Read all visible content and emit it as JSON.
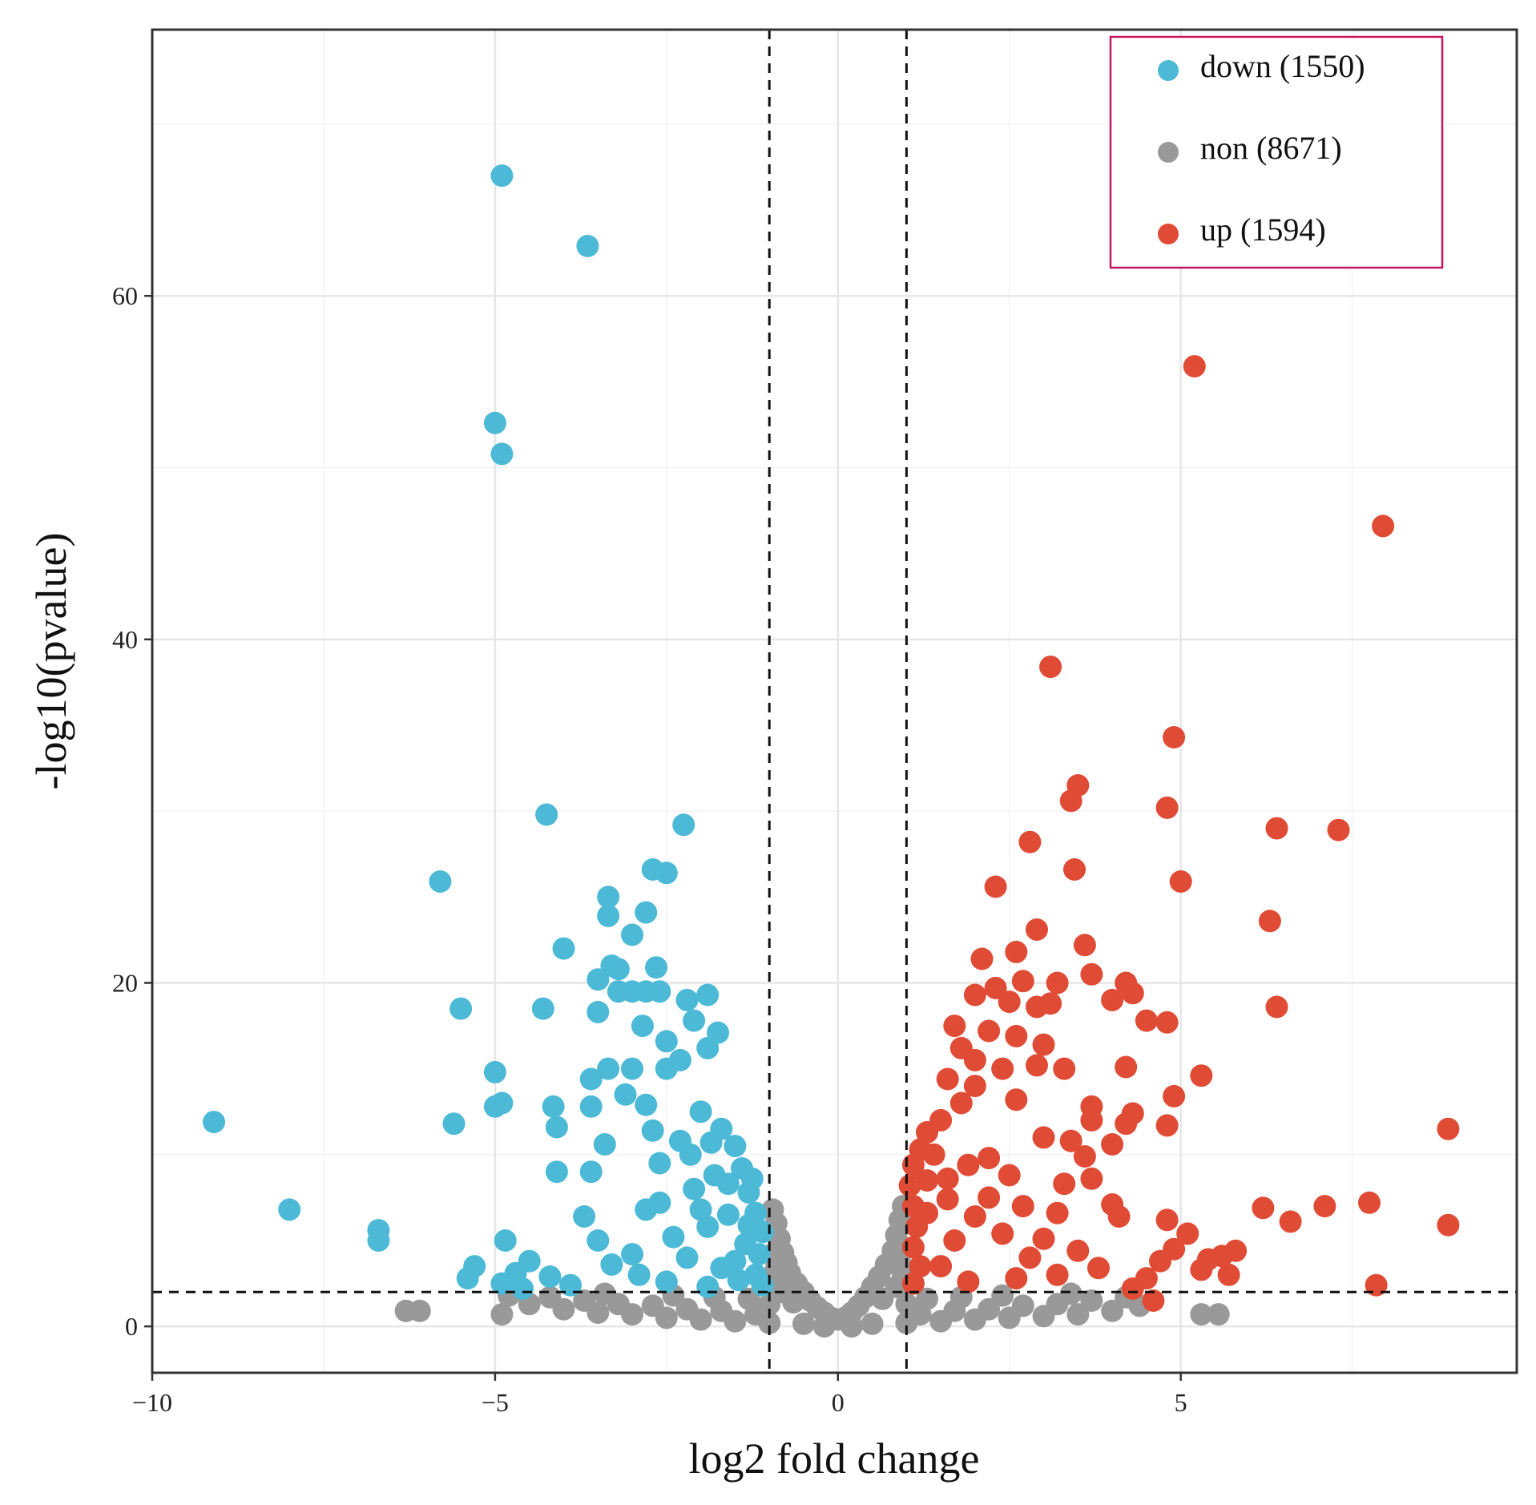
{
  "chart_data": {
    "type": "scatter",
    "title": "",
    "xlabel": "log2 fold change",
    "ylabel": "-log10(pvalue)",
    "xlim": [
      -10,
      9.9
    ],
    "ylim": [
      -2.7,
      75.5
    ],
    "x_ticks": [
      -10,
      -5,
      0,
      5
    ],
    "x_tick_labels": [
      "−10",
      "−5",
      "0",
      "5"
    ],
    "y_ticks": [
      0,
      20,
      40,
      60
    ],
    "y_tick_labels": [
      "0",
      "20",
      "40",
      "60"
    ],
    "grid": true,
    "threshold_lines": {
      "x": [
        -1,
        1
      ],
      "y": [
        2
      ]
    },
    "legend_position": "top-right",
    "colors": {
      "down": "#4cb9d6",
      "non": "#999999",
      "up": "#e04b35",
      "legend_border": "#c2185b"
    },
    "series": [
      {
        "key": "down",
        "name": "down (1550)",
        "color": "#4cb9d6",
        "points": [
          [
            -4.9,
            67.0
          ],
          [
            -3.65,
            62.9
          ],
          [
            -5.0,
            52.6
          ],
          [
            -4.9,
            50.8
          ],
          [
            -9.1,
            11.9
          ],
          [
            -8.0,
            6.8
          ],
          [
            -6.7,
            5.6
          ],
          [
            -6.7,
            5.0
          ],
          [
            -5.8,
            25.9
          ],
          [
            -5.5,
            18.5
          ],
          [
            -5.6,
            11.8
          ],
          [
            -5.0,
            14.8
          ],
          [
            -5.0,
            12.8
          ],
          [
            -4.9,
            13.0
          ],
          [
            -4.85,
            5.0
          ],
          [
            -5.3,
            3.5
          ],
          [
            -5.4,
            2.8
          ],
          [
            -4.25,
            29.8
          ],
          [
            -4.3,
            18.5
          ],
          [
            -4.15,
            12.8
          ],
          [
            -4.1,
            11.6
          ],
          [
            -4.0,
            22.0
          ],
          [
            -4.1,
            9.0
          ],
          [
            -3.35,
            25.0
          ],
          [
            -3.35,
            23.9
          ],
          [
            -3.0,
            22.8
          ],
          [
            -3.3,
            21.0
          ],
          [
            -3.2,
            20.8
          ],
          [
            -3.5,
            20.2
          ],
          [
            -3.2,
            19.5
          ],
          [
            -3.0,
            19.5
          ],
          [
            -3.5,
            18.3
          ],
          [
            -2.7,
            26.6
          ],
          [
            -2.5,
            26.4
          ],
          [
            -2.8,
            24.1
          ],
          [
            -2.65,
            20.9
          ],
          [
            -2.8,
            19.5
          ],
          [
            -2.6,
            19.5
          ],
          [
            -2.85,
            17.5
          ],
          [
            -2.5,
            16.6
          ],
          [
            -2.25,
            29.2
          ],
          [
            -2.2,
            19.0
          ],
          [
            -1.9,
            19.3
          ],
          [
            -2.1,
            17.8
          ],
          [
            -1.75,
            17.1
          ],
          [
            -1.9,
            16.2
          ],
          [
            -2.3,
            15.5
          ],
          [
            -2.5,
            15.0
          ],
          [
            -3.35,
            15.0
          ],
          [
            -3.0,
            15.0
          ],
          [
            -3.6,
            14.4
          ],
          [
            -3.1,
            13.5
          ],
          [
            -3.6,
            12.8
          ],
          [
            -2.8,
            12.9
          ],
          [
            -3.4,
            10.6
          ],
          [
            -3.6,
            9.0
          ],
          [
            -3.7,
            6.4
          ],
          [
            -3.5,
            5.0
          ],
          [
            -4.5,
            3.8
          ],
          [
            -4.7,
            3.1
          ],
          [
            -4.9,
            2.5
          ],
          [
            -4.2,
            2.9
          ],
          [
            -4.6,
            2.2
          ],
          [
            -3.3,
            3.6
          ],
          [
            -3.0,
            4.2
          ],
          [
            -2.8,
            6.8
          ],
          [
            -2.6,
            9.5
          ],
          [
            -2.3,
            10.8
          ],
          [
            -2.0,
            12.5
          ],
          [
            -1.7,
            11.5
          ],
          [
            -1.5,
            10.5
          ],
          [
            -1.4,
            9.2
          ],
          [
            -1.3,
            7.8
          ],
          [
            -1.2,
            6.6
          ],
          [
            -1.1,
            5.5
          ],
          [
            -1.15,
            4.2
          ],
          [
            -1.2,
            3.0
          ],
          [
            -1.1,
            2.4
          ],
          [
            -1.8,
            8.8
          ],
          [
            -2.1,
            8.0
          ],
          [
            -1.6,
            6.5
          ],
          [
            -1.9,
            5.8
          ],
          [
            -2.4,
            5.2
          ],
          [
            -2.2,
            4.0
          ],
          [
            -1.7,
            3.4
          ],
          [
            -2.9,
            3.0
          ],
          [
            -2.5,
            2.6
          ],
          [
            -3.9,
            2.4
          ],
          [
            -1.45,
            2.7
          ],
          [
            -1.9,
            2.3
          ],
          [
            -1.35,
            4.8
          ],
          [
            -1.5,
            3.8
          ],
          [
            -2.0,
            6.8
          ],
          [
            -2.6,
            7.2
          ],
          [
            -1.3,
            5.9
          ],
          [
            -1.6,
            8.3
          ],
          [
            -2.15,
            10.0
          ],
          [
            -2.7,
            11.4
          ],
          [
            -1.85,
            10.7
          ],
          [
            -1.25,
            8.6
          ]
        ]
      },
      {
        "key": "non",
        "name": "non (8671)",
        "color": "#999999",
        "points": [
          [
            -6.3,
            0.9
          ],
          [
            -6.1,
            0.9
          ],
          [
            -4.9,
            0.7
          ],
          [
            5.3,
            0.7
          ],
          [
            5.55,
            0.7
          ],
          [
            -0.95,
            6.8
          ],
          [
            -0.9,
            6.0
          ],
          [
            -0.85,
            5.1
          ],
          [
            -0.8,
            4.3
          ],
          [
            -0.75,
            3.7
          ],
          [
            -0.7,
            3.1
          ],
          [
            -0.6,
            2.5
          ],
          [
            -0.5,
            2.0
          ],
          [
            -0.4,
            1.5
          ],
          [
            -0.3,
            1.1
          ],
          [
            -0.2,
            0.8
          ],
          [
            -0.1,
            0.5
          ],
          [
            0.0,
            0.4
          ],
          [
            0.1,
            0.5
          ],
          [
            0.2,
            0.8
          ],
          [
            0.3,
            1.2
          ],
          [
            0.4,
            1.7
          ],
          [
            0.5,
            2.3
          ],
          [
            0.6,
            2.9
          ],
          [
            0.7,
            3.6
          ],
          [
            0.8,
            4.4
          ],
          [
            0.85,
            5.3
          ],
          [
            0.9,
            6.2
          ],
          [
            0.95,
            7.0
          ],
          [
            -0.95,
            4.2
          ],
          [
            -0.9,
            3.4
          ],
          [
            -0.95,
            2.6
          ],
          [
            -0.85,
            2.0
          ],
          [
            0.9,
            3.8
          ],
          [
            0.95,
            3.0
          ],
          [
            0.85,
            2.3
          ],
          [
            0.95,
            4.6
          ],
          [
            -0.65,
            1.4
          ],
          [
            0.65,
            1.6
          ],
          [
            -4.5,
            1.3
          ],
          [
            -4.0,
            1.0
          ],
          [
            -3.5,
            0.8
          ],
          [
            -3.0,
            0.7
          ],
          [
            -2.5,
            0.5
          ],
          [
            -2.0,
            0.4
          ],
          [
            -1.5,
            0.3
          ],
          [
            -1.0,
            0.2
          ],
          [
            -0.5,
            0.15
          ],
          [
            0.5,
            0.15
          ],
          [
            1.0,
            0.2
          ],
          [
            1.5,
            0.3
          ],
          [
            2.0,
            0.4
          ],
          [
            2.5,
            0.5
          ],
          [
            3.0,
            0.6
          ],
          [
            3.5,
            0.7
          ],
          [
            4.0,
            0.9
          ],
          [
            4.4,
            1.2
          ],
          [
            -4.2,
            1.7
          ],
          [
            -3.7,
            1.5
          ],
          [
            -3.2,
            1.3
          ],
          [
            -2.7,
            1.2
          ],
          [
            -2.2,
            1.0
          ],
          [
            -1.7,
            0.9
          ],
          [
            -1.2,
            0.7
          ],
          [
            1.2,
            0.7
          ],
          [
            1.7,
            0.9
          ],
          [
            2.2,
            1.0
          ],
          [
            2.7,
            1.2
          ],
          [
            3.2,
            1.3
          ],
          [
            3.7,
            1.5
          ],
          [
            4.2,
            1.7
          ],
          [
            -1.3,
            1.6
          ],
          [
            -1.8,
            1.7
          ],
          [
            1.3,
            1.6
          ],
          [
            1.8,
            1.7
          ],
          [
            -2.4,
            1.8
          ],
          [
            2.4,
            1.8
          ],
          [
            -3.4,
            1.9
          ],
          [
            3.4,
            1.9
          ],
          [
            -1.0,
            1.3
          ],
          [
            1.0,
            1.3
          ],
          [
            -0.2,
            0.0
          ],
          [
            0.2,
            0.0
          ],
          [
            -4.8,
            1.8
          ]
        ]
      },
      {
        "key": "up",
        "name": "up (1594)",
        "color": "#e04b35",
        "points": [
          [
            5.2,
            55.9
          ],
          [
            7.95,
            46.6
          ],
          [
            3.1,
            38.4
          ],
          [
            4.9,
            34.3
          ],
          [
            3.5,
            31.5
          ],
          [
            3.4,
            30.6
          ],
          [
            4.8,
            30.2
          ],
          [
            6.4,
            29.0
          ],
          [
            7.3,
            28.9
          ],
          [
            2.8,
            28.2
          ],
          [
            3.45,
            26.6
          ],
          [
            5.0,
            25.9
          ],
          [
            2.3,
            25.6
          ],
          [
            6.3,
            23.6
          ],
          [
            2.9,
            23.1
          ],
          [
            3.6,
            22.2
          ],
          [
            2.6,
            21.8
          ],
          [
            2.1,
            21.4
          ],
          [
            2.7,
            20.1
          ],
          [
            3.2,
            20.0
          ],
          [
            3.7,
            20.5
          ],
          [
            4.2,
            20.0
          ],
          [
            4.3,
            19.4
          ],
          [
            4.0,
            19.0
          ],
          [
            2.3,
            19.7
          ],
          [
            2.0,
            19.3
          ],
          [
            2.5,
            18.9
          ],
          [
            2.9,
            18.6
          ],
          [
            3.1,
            18.8
          ],
          [
            6.4,
            18.6
          ],
          [
            4.5,
            17.8
          ],
          [
            4.8,
            17.7
          ],
          [
            1.7,
            17.5
          ],
          [
            2.2,
            17.2
          ],
          [
            2.6,
            16.9
          ],
          [
            3.0,
            16.4
          ],
          [
            1.8,
            16.2
          ],
          [
            2.0,
            15.5
          ],
          [
            2.4,
            15.0
          ],
          [
            2.9,
            15.2
          ],
          [
            3.3,
            15.0
          ],
          [
            4.2,
            15.1
          ],
          [
            5.3,
            14.6
          ],
          [
            1.6,
            14.4
          ],
          [
            2.0,
            14.0
          ],
          [
            2.6,
            13.2
          ],
          [
            4.9,
            13.4
          ],
          [
            3.7,
            12.8
          ],
          [
            1.8,
            13.0
          ],
          [
            4.3,
            12.4
          ],
          [
            3.7,
            12.0
          ],
          [
            4.2,
            11.8
          ],
          [
            4.8,
            11.7
          ],
          [
            8.9,
            11.5
          ],
          [
            3.0,
            11.0
          ],
          [
            3.4,
            10.8
          ],
          [
            4.0,
            10.6
          ],
          [
            1.5,
            12.0
          ],
          [
            1.3,
            11.3
          ],
          [
            1.2,
            10.3
          ],
          [
            1.1,
            9.4
          ],
          [
            1.05,
            8.2
          ],
          [
            1.1,
            7.0
          ],
          [
            1.15,
            5.8
          ],
          [
            1.1,
            4.6
          ],
          [
            1.2,
            3.5
          ],
          [
            1.1,
            2.5
          ],
          [
            1.4,
            10.0
          ],
          [
            1.6,
            8.6
          ],
          [
            1.9,
            9.4
          ],
          [
            2.2,
            9.8
          ],
          [
            2.5,
            8.8
          ],
          [
            2.2,
            7.5
          ],
          [
            2.7,
            7.0
          ],
          [
            3.6,
            9.9
          ],
          [
            3.3,
            8.3
          ],
          [
            3.7,
            8.6
          ],
          [
            4.0,
            7.1
          ],
          [
            3.2,
            6.6
          ],
          [
            4.1,
            6.4
          ],
          [
            4.8,
            6.2
          ],
          [
            5.1,
            5.4
          ],
          [
            4.9,
            4.5
          ],
          [
            4.7,
            3.8
          ],
          [
            6.2,
            6.9
          ],
          [
            6.6,
            6.1
          ],
          [
            7.1,
            7.0
          ],
          [
            7.75,
            7.2
          ],
          [
            8.9,
            5.9
          ],
          [
            5.8,
            4.4
          ],
          [
            5.6,
            4.1
          ],
          [
            5.4,
            3.9
          ],
          [
            5.3,
            3.3
          ],
          [
            5.7,
            3.0
          ],
          [
            7.85,
            2.4
          ],
          [
            4.5,
            2.8
          ],
          [
            4.6,
            1.5
          ],
          [
            4.3,
            2.2
          ],
          [
            3.8,
            3.4
          ],
          [
            3.5,
            4.4
          ],
          [
            3.0,
            5.1
          ],
          [
            2.8,
            4.0
          ],
          [
            2.4,
            5.4
          ],
          [
            2.0,
            6.4
          ],
          [
            1.7,
            5.0
          ],
          [
            1.5,
            3.5
          ],
          [
            1.9,
            2.6
          ],
          [
            2.6,
            2.8
          ],
          [
            3.2,
            3.0
          ],
          [
            1.3,
            6.6
          ],
          [
            1.6,
            7.4
          ],
          [
            1.3,
            8.5
          ]
        ]
      }
    ]
  }
}
